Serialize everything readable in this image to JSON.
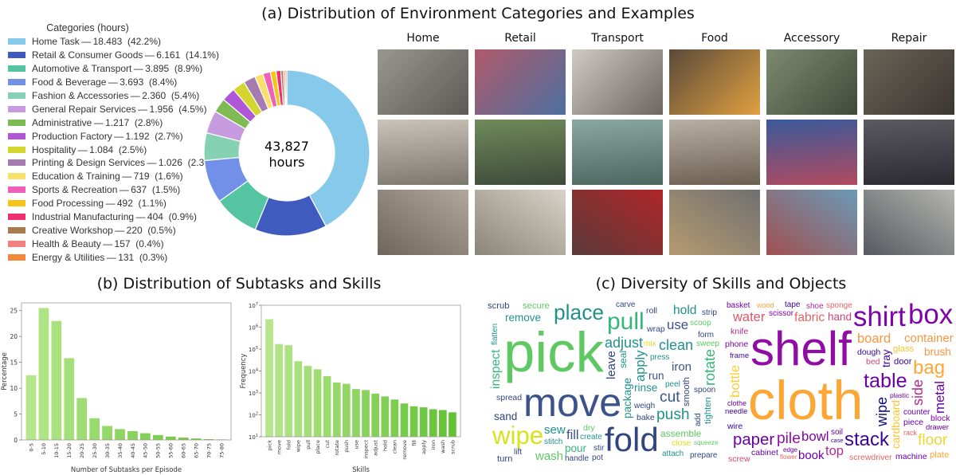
{
  "panel_a": {
    "title": "(a) Distribution of Environment Categories and Examples",
    "legend_title": "Categories (hours)",
    "center_value": "43,827",
    "center_unit": "hours",
    "example_columns": [
      "Home",
      "Retail",
      "Transport",
      "Food",
      "Accessory",
      "Repair"
    ]
  },
  "panel_b": {
    "title": "(b) Distribution of Subtasks and Skills"
  },
  "panel_c": {
    "title": "(c) Diversity of Skills and Objects"
  },
  "chart_data": [
    {
      "type": "pie",
      "variant": "donut",
      "legend_placement": "left",
      "categories": [
        {
          "name": "Home Task",
          "value": 18483,
          "value_label": "18.483",
          "pct": "42.2%",
          "color": "#87c9ea"
        },
        {
          "name": "Retail & Consumer Goods",
          "value": 6161,
          "value_label": "6.161",
          "pct": "14.1%",
          "color": "#3f5bbf"
        },
        {
          "name": "Automotive & Transport",
          "value": 3895,
          "value_label": "3.895",
          "pct": "8.9%",
          "color": "#55c4a0"
        },
        {
          "name": "Food & Beverage",
          "value": 3693,
          "value_label": "3.693",
          "pct": "8.4%",
          "color": "#7390e8"
        },
        {
          "name": "Fashion & Accessories",
          "value": 2360,
          "value_label": "2.360",
          "pct": "5.4%",
          "color": "#86d1b3"
        },
        {
          "name": "General Repair Services",
          "value": 1956,
          "value_label": "1.956",
          "pct": "4.5%",
          "color": "#c79be0"
        },
        {
          "name": "Administrative",
          "value": 1217,
          "value_label": "1.217",
          "pct": "2.8%",
          "color": "#7fbb54"
        },
        {
          "name": "Production Factory",
          "value": 1192,
          "value_label": "1.192",
          "pct": "2.7%",
          "color": "#b056d6"
        },
        {
          "name": "Hospitality",
          "value": 1084,
          "value_label": "1.084",
          "pct": "2.5%",
          "color": "#d4d52e"
        },
        {
          "name": "Printing & Design Services",
          "value": 1026,
          "value_label": "1.026",
          "pct": "2.3%",
          "color": "#a67bb0"
        },
        {
          "name": "Education & Training",
          "value": 719,
          "value_label": "719",
          "pct": "1.6%",
          "color": "#f9e06a"
        },
        {
          "name": "Sports & Recreation",
          "value": 637,
          "value_label": "637",
          "pct": "1.5%",
          "color": "#f05fb8"
        },
        {
          "name": "Food Processing",
          "value": 492,
          "value_label": "492",
          "pct": "1.1%",
          "color": "#f5c518"
        },
        {
          "name": "Industrial Manufacturing",
          "value": 404,
          "value_label": "404",
          "pct": "0.9%",
          "color": "#ee3070"
        },
        {
          "name": "Creative Workshop",
          "value": 220,
          "value_label": "220",
          "pct": "0.5%",
          "color": "#a87a4d"
        },
        {
          "name": "Health & Beauty",
          "value": 157,
          "value_label": "157",
          "pct": "0.4%",
          "color": "#f28282"
        },
        {
          "name": "Energy & Utilities",
          "value": 131,
          "value_label": "131",
          "pct": "0.3%",
          "color": "#f5873d"
        }
      ]
    },
    {
      "type": "bar",
      "xlabel": "Number of Subtasks per Episode",
      "ylabel": "Percentage",
      "categories": [
        "0-5",
        "5-10",
        "10-15",
        "15-20",
        "20-25",
        "25-30",
        "30-35",
        "35-40",
        "40-45",
        "45-50",
        "50-55",
        "55-60",
        "60-65",
        "65-70",
        "70-75",
        "75-80"
      ],
      "values": [
        12.5,
        25.5,
        23.0,
        15.8,
        8.1,
        4.2,
        2.7,
        2.1,
        1.7,
        1.3,
        0.95,
        0.65,
        0.45,
        0.28,
        0.15,
        0.1
      ],
      "ylim": [
        0,
        26.5
      ],
      "yticks": [
        0,
        5,
        10,
        15,
        20,
        25
      ],
      "grid": false,
      "color_range": [
        "#b5e68a",
        "#62c233"
      ]
    },
    {
      "type": "bar",
      "yscale": "log",
      "xlabel": "Skills",
      "ylabel": "Frequency",
      "categories": [
        "pick",
        "move",
        "fold",
        "wipe",
        "pull",
        "place",
        "cut",
        "rotate",
        "push",
        "use",
        "inspect",
        "adjust",
        "hold",
        "clean",
        "remove",
        "fill",
        "apply",
        "iron",
        "wash",
        "scrub"
      ],
      "values": [
        2300000,
        170000,
        150000,
        28000,
        17000,
        12000,
        5800,
        3000,
        2600,
        1500,
        1350,
        930,
        690,
        500,
        330,
        245,
        220,
        180,
        165,
        130
      ],
      "ylim": [
        10,
        10000000
      ],
      "ytick_exponents": [
        1,
        2,
        3,
        4,
        5,
        6,
        7
      ],
      "grid": false,
      "color_range": [
        "#b5e68a",
        "#62c233"
      ]
    }
  ],
  "wordcloud": {
    "skills": [
      {
        "w": "pick",
        "c": "#5ec962"
      },
      {
        "w": "move",
        "c": "#3b528b"
      },
      {
        "w": "fold",
        "c": "#31447f"
      },
      {
        "w": "wipe",
        "c": "#d8e219"
      },
      {
        "w": "pull",
        "c": "#35b779"
      },
      {
        "w": "place",
        "c": "#21918c"
      },
      {
        "w": "push",
        "c": "#21918c"
      },
      {
        "w": "cut",
        "c": "#3b528b"
      },
      {
        "w": "rotate",
        "c": "#35b779"
      },
      {
        "w": "use",
        "c": "#3b528b"
      },
      {
        "w": "hold",
        "c": "#21918c"
      },
      {
        "w": "clean",
        "c": "#21918c"
      },
      {
        "w": "adjust",
        "c": "#21918c"
      },
      {
        "w": "remove",
        "c": "#21918c"
      },
      {
        "w": "inspect",
        "c": "#35b779"
      },
      {
        "w": "scrub",
        "c": "#31447f"
      },
      {
        "w": "iron",
        "c": "#3b528b"
      },
      {
        "w": "apply",
        "c": "#21918c"
      },
      {
        "w": "package",
        "c": "#21918c"
      },
      {
        "w": "sand",
        "c": "#31447f"
      },
      {
        "w": "sew",
        "c": "#21918c"
      },
      {
        "w": "fill",
        "c": "#3b528b"
      },
      {
        "w": "pour",
        "c": "#35b779"
      },
      {
        "w": "wash",
        "c": "#5ec962"
      },
      {
        "w": "turn",
        "c": "#31447f"
      },
      {
        "w": "handle",
        "c": "#31447f"
      },
      {
        "w": "leave",
        "c": "#31447f"
      },
      {
        "w": "rinse",
        "c": "#21918c"
      },
      {
        "w": "run",
        "c": "#3b528b"
      },
      {
        "w": "smooth",
        "c": "#31447f"
      },
      {
        "w": "tighten",
        "c": "#21918c"
      },
      {
        "w": "secure",
        "c": "#5ec962"
      },
      {
        "w": "roll",
        "c": "#31447f"
      },
      {
        "w": "assemble",
        "c": "#5ec962"
      },
      {
        "w": "wrap",
        "c": "#31447f"
      },
      {
        "w": "press",
        "c": "#21918c"
      },
      {
        "w": "spread",
        "c": "#31447f"
      },
      {
        "w": "seal",
        "c": "#21918c"
      },
      {
        "w": "dry",
        "c": "#5ec962"
      },
      {
        "w": "bake",
        "c": "#31447f"
      },
      {
        "w": "close",
        "c": "#d8e219"
      },
      {
        "w": "carve",
        "c": "#31447f"
      },
      {
        "w": "spoon",
        "c": "#31447f"
      },
      {
        "w": "sweep",
        "c": "#5ec962"
      },
      {
        "w": "peel",
        "c": "#21918c"
      },
      {
        "w": "form",
        "c": "#31447f"
      },
      {
        "w": "lift",
        "c": "#31447f"
      },
      {
        "w": "stitch",
        "c": "#21918c"
      },
      {
        "w": "weigh",
        "c": "#31447f"
      },
      {
        "w": "attach",
        "c": "#21918c"
      },
      {
        "w": "create",
        "c": "#21918c"
      },
      {
        "w": "prepare",
        "c": "#31447f"
      },
      {
        "w": "scoop",
        "c": "#5ec962"
      },
      {
        "w": "flatten",
        "c": "#21918c"
      },
      {
        "w": "squeeze",
        "c": "#5ec962"
      },
      {
        "w": "stir",
        "c": "#31447f"
      },
      {
        "w": "pot",
        "c": "#31447f"
      },
      {
        "w": "add",
        "c": "#31447f"
      },
      {
        "w": "mix",
        "c": "#d8e219"
      },
      {
        "w": "strip",
        "c": "#31447f"
      }
    ],
    "objects": [
      {
        "w": "shelf",
        "c": "#8f0da4"
      },
      {
        "w": "cloth",
        "c": "#fca636"
      },
      {
        "w": "shirt",
        "c": "#7e03a8"
      },
      {
        "w": "box",
        "c": "#7e03a8"
      },
      {
        "w": "table",
        "c": "#6a00a8"
      },
      {
        "w": "bag",
        "c": "#fca636"
      },
      {
        "w": "stack",
        "c": "#3a049a"
      },
      {
        "w": "floor",
        "c": "#eed637"
      },
      {
        "w": "paper",
        "c": "#6a00a8"
      },
      {
        "w": "pile",
        "c": "#8f0da4"
      },
      {
        "w": "bowl",
        "c": "#7e03a8"
      },
      {
        "w": "bottle",
        "c": "#f7d13d"
      },
      {
        "w": "metal",
        "c": "#6a00a8"
      },
      {
        "w": "side",
        "c": "#b12a90"
      },
      {
        "w": "fabric",
        "c": "#e16462"
      },
      {
        "w": "water",
        "c": "#d8576b"
      },
      {
        "w": "board",
        "c": "#f89540"
      },
      {
        "w": "container",
        "c": "#f89540"
      },
      {
        "w": "wipe",
        "c": "#0d0887"
      },
      {
        "w": "top",
        "c": "#b12a90"
      },
      {
        "w": "book",
        "c": "#6a00a8"
      },
      {
        "w": "hand",
        "c": "#cc4778"
      },
      {
        "w": "brush",
        "c": "#f89540"
      },
      {
        "w": "cardboard",
        "c": "#fdc328"
      },
      {
        "w": "basket",
        "c": "#6a00a8"
      },
      {
        "w": "scissor",
        "c": "#7e03a8"
      },
      {
        "w": "shoe",
        "c": "#b12a90"
      },
      {
        "w": "sponge",
        "c": "#e16462"
      },
      {
        "w": "tray",
        "c": "#3a049a"
      },
      {
        "w": "bed",
        "c": "#cc4778"
      },
      {
        "w": "glass",
        "c": "#fdc328"
      },
      {
        "w": "counter",
        "c": "#6a00a8"
      },
      {
        "w": "dough",
        "c": "#3a049a"
      },
      {
        "w": "piece",
        "c": "#6a00a8"
      },
      {
        "w": "block",
        "c": "#7e03a8"
      },
      {
        "w": "cabinet",
        "c": "#6a00a8"
      },
      {
        "w": "screwdriver",
        "c": "#e16462"
      },
      {
        "w": "machine",
        "c": "#6a00a8"
      },
      {
        "w": "wire",
        "c": "#3a049a"
      },
      {
        "w": "screw",
        "c": "#cc4778"
      },
      {
        "w": "needle",
        "c": "#3a049a"
      },
      {
        "w": "plate",
        "c": "#fca636"
      },
      {
        "w": "drawer",
        "c": "#6a00a8"
      },
      {
        "w": "phone",
        "c": "#7e03a8"
      },
      {
        "w": "door",
        "c": "#3a049a"
      },
      {
        "w": "plastic",
        "c": "#6a00a8"
      },
      {
        "w": "frame",
        "c": "#3a049a"
      },
      {
        "w": "knife",
        "c": "#b12a90"
      },
      {
        "w": "flower",
        "c": "#e16462"
      },
      {
        "w": "clothe",
        "c": "#6a00a8"
      },
      {
        "w": "wood",
        "c": "#fca636"
      },
      {
        "w": "edge",
        "c": "#6a00a8"
      },
      {
        "w": "tape",
        "c": "#3a049a"
      },
      {
        "w": "soil",
        "c": "#6a00a8"
      },
      {
        "w": "case",
        "c": "#3a049a"
      },
      {
        "w": "rack",
        "c": "#e16462"
      }
    ]
  }
}
